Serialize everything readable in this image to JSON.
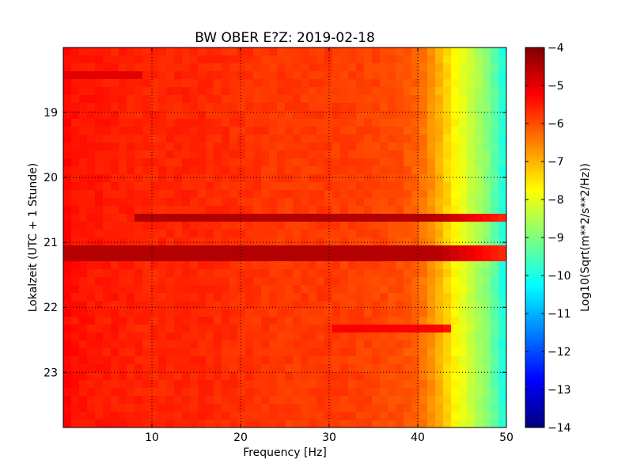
{
  "chart_data": {
    "type": "heatmap",
    "title": "BW OBER E?Z: 2019-02-18",
    "xlabel": "Frequency [Hz]",
    "ylabel": "Lokalzeit (UTC + 1 Stunde)",
    "xlim": [
      0,
      50
    ],
    "ylim_hours": [
      18.0,
      23.85
    ],
    "y_inverted": true,
    "x_ticks": [
      10,
      20,
      30,
      40,
      50
    ],
    "y_ticks": [
      19,
      20,
      21,
      22,
      23
    ],
    "grid": true,
    "colormap": "jet",
    "colorbar": {
      "label": "Log10(Sqrt(m**2/s**2/Hz))",
      "min": -14,
      "max": -4,
      "ticks": [
        -4,
        -5,
        -6,
        -7,
        -8,
        -9,
        -10,
        -11,
        -12,
        -13,
        -14
      ]
    },
    "background_level": -5.6,
    "frequency_profile": {
      "x": [
        0,
        1,
        5,
        10,
        15,
        20,
        25,
        30,
        35,
        38,
        40,
        42,
        44,
        46,
        48,
        49.5,
        50
      ],
      "values": [
        -5.2,
        -5.4,
        -5.5,
        -5.6,
        -5.6,
        -5.7,
        -5.8,
        -5.8,
        -5.9,
        -6.0,
        -6.2,
        -6.8,
        -7.6,
        -8.3,
        -9.0,
        -9.8,
        -10.5
      ]
    },
    "bands": [
      {
        "hour": 20.62,
        "x_range": [
          8,
          50
        ],
        "level": -4.5
      },
      {
        "hour": 21.17,
        "x_range": [
          0,
          50
        ],
        "level": -4.5
      },
      {
        "hour": 22.35,
        "x_range": [
          30,
          44
        ],
        "level": -5.2
      },
      {
        "hour": 18.42,
        "x_range": [
          0,
          9
        ],
        "level": -5.0
      }
    ]
  }
}
